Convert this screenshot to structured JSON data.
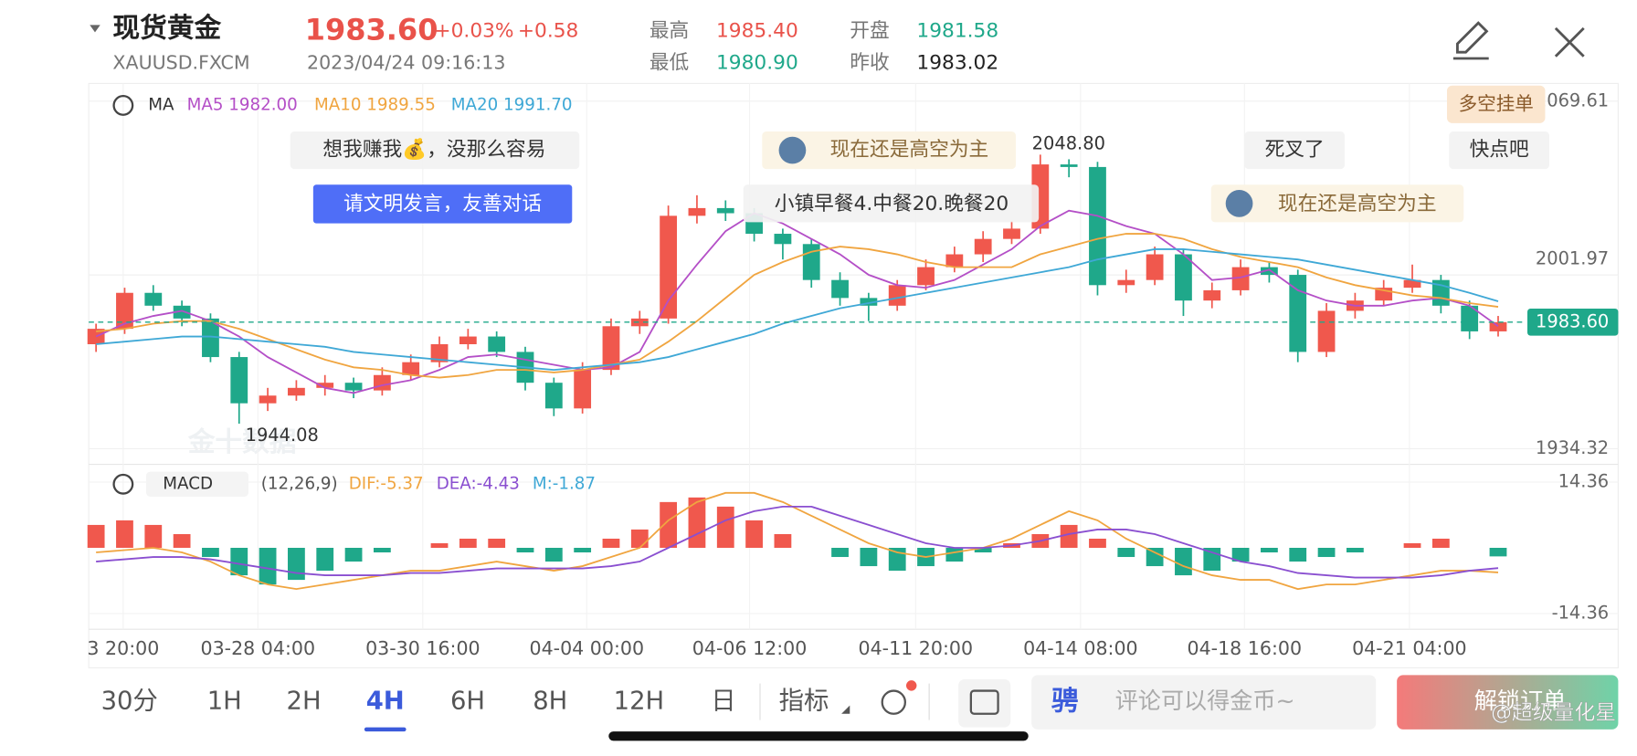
{
  "header": {
    "title": "现货黄金",
    "symbol": "XAUUSD.FXCM",
    "price": "1983.60",
    "change_pct": "+0.03%",
    "change": "+0.58",
    "time": "2023/04/24 09:16:13",
    "stats": [
      {
        "label": "最高",
        "value": "1985.40"
      },
      {
        "label": "最低",
        "value": "1980.90"
      },
      {
        "label": "开盘",
        "value": "1981.58"
      },
      {
        "label": "昨收",
        "value": "1983.02"
      }
    ]
  },
  "comments": [
    "想我赚我💰，没那么容易",
    "请文明发言，友善对话",
    "现在还是高空为主",
    "小镇早餐4.中餐20.晚餐20",
    "死叉了",
    "快点吧",
    "现在还是高空为主",
    "多空挂单"
  ],
  "watermark": "金十数据",
  "chart_data": {
    "type": "candlestick",
    "legend": {
      "title": "MA",
      "items": [
        "MA5 1982.00",
        "MA10 1989.55",
        "MA20 1991.70"
      ]
    },
    "open": [
      1975,
      1981,
      1995,
      1990,
      1985,
      1970,
      1952,
      1955,
      1958,
      1960,
      1957,
      1963,
      1968,
      1975,
      1978,
      1972,
      1960,
      1950,
      1965,
      1982,
      1985,
      2025,
      2028,
      2026,
      2018,
      2014,
      2000,
      1993,
      1990,
      1998,
      2005,
      2010,
      2016,
      2020,
      2045,
      2044,
      1998,
      2000,
      2010,
      1992,
      1996,
      2005,
      2002,
      1972,
      1988,
      1992,
      1997,
      2000,
      1990,
      1980
    ],
    "high": [
      1983,
      1997,
      1998,
      1992,
      1987,
      1972,
      1958,
      1961,
      1963,
      1962,
      1966,
      1971,
      1978,
      1981,
      1980,
      1974,
      1962,
      1968,
      1985,
      1988,
      2029,
      2033,
      2031,
      2028,
      2020,
      2016,
      2003,
      1995,
      2000,
      2008,
      2013,
      2019,
      2023,
      2048.8,
      2047,
      2046,
      2004,
      2013,
      2012,
      1999,
      2008,
      2007,
      2004,
      1991,
      1995,
      2000,
      2006,
      2002,
      1992,
      1986
    ],
    "low": [
      1972,
      1979,
      1988,
      1982,
      1968,
      1944.08,
      1949,
      1953,
      1955,
      1954,
      1955,
      1961,
      1966,
      1973,
      1970,
      1957,
      1947,
      1948,
      1963,
      1979,
      1983,
      2022,
      2023,
      2015,
      2008,
      1997,
      1990,
      1984,
      1988,
      1996,
      2003,
      2007,
      2014,
      2018,
      2040,
      1994,
      1995,
      1998,
      1986,
      1989,
      1994,
      1999,
      1968,
      1970,
      1985,
      1990,
      1995,
      1987,
      1977,
      1978
    ],
    "close": [
      1981,
      1995,
      1990,
      1985,
      1970,
      1952,
      1955,
      1958,
      1960,
      1957,
      1963,
      1968,
      1975,
      1978,
      1972,
      1960,
      1950,
      1965,
      1982,
      1985,
      2025,
      2028,
      2026,
      2018,
      2014,
      2000,
      1993,
      1990,
      1998,
      2005,
      2010,
      2016,
      2020,
      2045,
      2044,
      1998,
      2000,
      2010,
      1992,
      1996,
      2005,
      2002,
      1972,
      1988,
      1992,
      1997,
      2000,
      1990,
      1980,
      1983.6
    ],
    "series": [
      {
        "name": "MA5",
        "color": "#b44fc7",
        "values": [
          1978,
          1983,
          1986,
          1988,
          1984,
          1978,
          1970,
          1964,
          1958,
          1956,
          1959,
          1961,
          1965,
          1970,
          1971,
          1969,
          1967,
          1965,
          1966,
          1972,
          1992,
          2006,
          2019,
          2026,
          2022,
          2016,
          2010,
          2002,
          1998,
          1997,
          2000,
          2006,
          2012,
          2021,
          2027,
          2025,
          2021,
          2018,
          2010,
          2000,
          2001,
          2004,
          1996,
          1992,
          1990,
          1990,
          1992,
          1993,
          1990,
          1982
        ]
      },
      {
        "name": "MA10",
        "color": "#f0a540",
        "values": [
          1980,
          1981,
          1983,
          1984,
          1984,
          1981,
          1977,
          1973,
          1969,
          1966,
          1965,
          1963,
          1962,
          1963,
          1965,
          1965,
          1964,
          1965,
          1967,
          1969,
          1976,
          1984,
          1993,
          2002,
          2007,
          2011,
          2013,
          2012,
          2010,
          2007,
          2005,
          2005,
          2005,
          2010,
          2013,
          2016,
          2018,
          2018,
          2016,
          2012,
          2009,
          2007,
          2005,
          2001,
          1998,
          1996,
          1994,
          1993,
          1991,
          1989.55
        ]
      },
      {
        "name": "MA20",
        "color": "#3fa8d6",
        "values": [
          1975,
          1976,
          1977,
          1978,
          1978,
          1977,
          1976,
          1975,
          1974,
          1972,
          1971,
          1970,
          1969,
          1968,
          1967,
          1966,
          1965,
          1966,
          1967,
          1968,
          1970,
          1973,
          1976,
          1979,
          1983,
          1986,
          1989,
          1991,
          1993,
          1995,
          1997,
          1999,
          2001,
          2003,
          2005,
          2008,
          2010,
          2012,
          2012,
          2011,
          2010,
          2009,
          2008,
          2006,
          2004,
          2002,
          2000,
          1998,
          1995,
          1991.7
        ]
      }
    ],
    "up_color": "#f0584d",
    "down_color": "#1fa88a",
    "ylim": [
      1934.32,
      2069.61
    ],
    "yticks": [
      1934.32,
      2001.97,
      2069.61
    ],
    "last": {
      "value": 1983.6,
      "label": "1983.60"
    },
    "max_label": "2048.80",
    "min_label": "1944.08",
    "xtick_labels": [
      "3 20:00",
      "03-28 04:00",
      "03-30 16:00",
      "04-04 00:00",
      "04-06 12:00",
      "04-11 20:00",
      "04-14 08:00",
      "04-18 16:00",
      "04-21 04:00"
    ],
    "macd": {
      "title": "MACD",
      "params": "(12,26,9)",
      "dif_label": "DIF:-5.37",
      "dea_label": "DEA:-4.43",
      "m_label": "M:-1.87",
      "ylim": [
        -14.36,
        14.36
      ],
      "yticks": [
        -14.36,
        14.36
      ],
      "hist": [
        5,
        6,
        5,
        3,
        -2,
        -6,
        -8,
        -7,
        -5,
        -3,
        -1,
        0,
        1,
        2,
        2,
        -1,
        -3,
        -1,
        2,
        4,
        10,
        11,
        9,
        6,
        3,
        0,
        -2,
        -4,
        -5,
        -4,
        -3,
        -1,
        1,
        3,
        5,
        2,
        -2,
        -4,
        -6,
        -5,
        -3,
        -1,
        -3,
        -2,
        -1,
        0,
        1,
        2,
        0,
        -1.87
      ],
      "dif": {
        "color": "#f0a540",
        "values": [
          -1,
          -0.5,
          0,
          -1,
          -3,
          -6,
          -8,
          -9,
          -8,
          -7,
          -6,
          -5,
          -5,
          -4,
          -3,
          -4,
          -5,
          -4,
          -2,
          0,
          6,
          10,
          12,
          12,
          10,
          7,
          4,
          1,
          -1,
          -2,
          -1,
          0,
          2,
          5,
          8,
          6,
          2,
          -1,
          -4,
          -6,
          -7,
          -7,
          -9,
          -8,
          -8,
          -7,
          -6,
          -5,
          -5,
          -5.37
        ]
      },
      "dea": {
        "color": "#8a4fd0",
        "values": [
          -3,
          -2.5,
          -2,
          -2,
          -2.5,
          -3.5,
          -4.5,
          -5.5,
          -6,
          -6,
          -6,
          -5.5,
          -5.5,
          -5,
          -4.5,
          -4.5,
          -4.5,
          -4.5,
          -4,
          -3,
          0,
          3,
          6,
          8,
          9,
          9,
          7,
          5,
          3,
          1,
          0,
          0,
          0.5,
          1.5,
          3,
          4,
          4,
          3,
          1,
          -1,
          -3,
          -4,
          -5.5,
          -6,
          -6.5,
          -6.5,
          -6.5,
          -6,
          -5,
          -4.43
        ]
      }
    }
  },
  "toolbar": {
    "tabs": [
      "30分",
      "1H",
      "2H",
      "4H",
      "6H",
      "8H",
      "12H",
      "日",
      "指标"
    ],
    "active": "4H",
    "comment_logo": "骋",
    "comment_placeholder": "评论可以得金币~",
    "button": "解锁订单",
    "credit": "@超级量化星"
  }
}
